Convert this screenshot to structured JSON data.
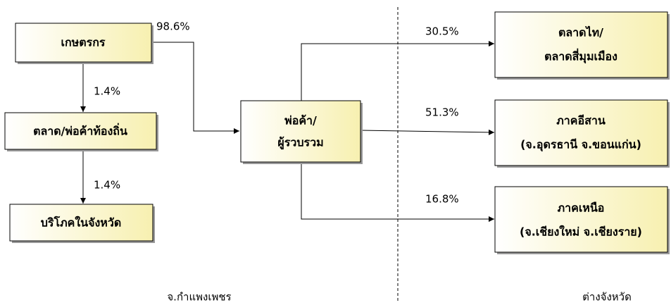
{
  "nodes": [
    {
      "lines": [
        "เกษตรกร"
      ]
    },
    {
      "lines": [
        "ตลาด/พ่อค้าท้องถิ่น"
      ]
    },
    {
      "lines": [
        "บริโภคในจังหวัด"
      ]
    },
    {
      "lines": [
        "พ่อค้า/",
        "ผู้รวบรวม"
      ]
    },
    {
      "lines": [
        "ตลาดไท/",
        "ตลาดสี่มุมเมือง"
      ]
    },
    {
      "lines": [
        "ภาคอีสาน",
        "(จ.อุดรธานี จ.ขอนแก่น)"
      ]
    },
    {
      "lines": [
        "ภาคเหนือ",
        "(จ.เชียงใหม่ จ.เชียงราย)"
      ]
    }
  ],
  "edges": [
    {
      "label": "98.6%"
    },
    {
      "label": "1.4%"
    },
    {
      "label": "1.4%"
    },
    {
      "label": "30.5%"
    },
    {
      "label": "51.3%"
    },
    {
      "label": "16.8%"
    }
  ],
  "regions": [
    "จ.กำแพงเพชร",
    "ต่างจังหวัด"
  ]
}
